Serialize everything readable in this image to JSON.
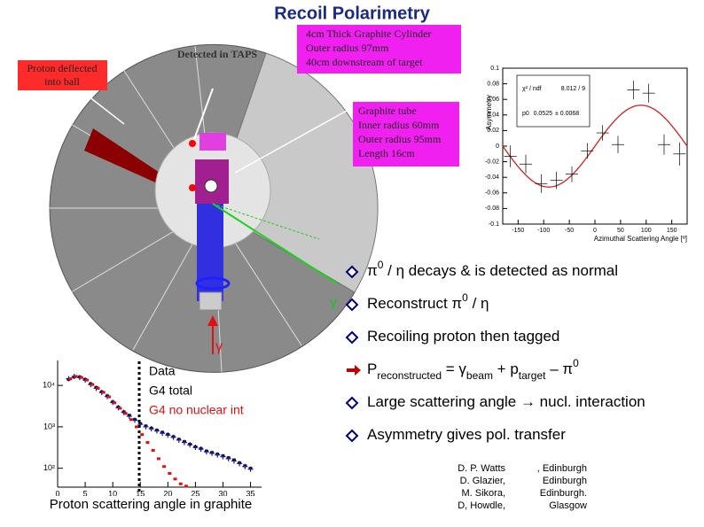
{
  "title": "Recoil Polarimetry",
  "callouts": {
    "proton_deflected": [
      "Proton deflected",
      "into ball"
    ],
    "detected": "Detected in TAPS",
    "cylinder": [
      "4cm Thick Graphite Cylinder",
      "Outer radius 97mm",
      "40cm downstream of target"
    ],
    "tube": [
      "Graphite tube",
      "Inner radius 60mm",
      "Outer radius 95mm",
      "Length 16cm"
    ],
    "gamma_out": "γ",
    "gamma_beam": "γ"
  },
  "asymmetry_plot": {
    "type": "scatter",
    "x": [
      -165,
      -135,
      -105,
      -75,
      -45,
      -15,
      15,
      45,
      75,
      105,
      135,
      165
    ],
    "values": [
      -0.013,
      -0.023,
      -0.048,
      -0.044,
      -0.036,
      -0.006,
      0.017,
      0.002,
      0.072,
      0.068,
      0.002,
      -0.01
    ],
    "errors": [
      0.014,
      0.012,
      0.012,
      0.011,
      0.01,
      0.01,
      0.01,
      0.011,
      0.012,
      0.012,
      0.013,
      0.015
    ],
    "color": "#000000",
    "fit_color": "#d42020",
    "xlim": [
      -180,
      180
    ],
    "xticks": [
      -150,
      -100,
      -50,
      0,
      50,
      100,
      150
    ],
    "ylim": [
      -0.1,
      0.1
    ],
    "yticks": [
      -0.1,
      -0.08,
      -0.06,
      -0.04,
      -0.02,
      0,
      0.02,
      0.04,
      0.06,
      0.08,
      0.1
    ],
    "xlabel": "Azimuthal Scattering Angle [º]",
    "ylabel": "Asymmetry",
    "stats": {
      "chi2_name": "χ² / ndf",
      "chi2": "8.012 / 9",
      "p0_name": "p0",
      "p0": 0.0525,
      "p0_error": "± 0.0068"
    }
  },
  "scattering_plot": {
    "type": "scatter",
    "log_y": true,
    "x": [
      2,
      3,
      4,
      5,
      6,
      7,
      8,
      9,
      10,
      11,
      12,
      13,
      14,
      15,
      16,
      17,
      18,
      19,
      20,
      21,
      22,
      23,
      24,
      25,
      26,
      27,
      28,
      29,
      30,
      31,
      32,
      33,
      34,
      35
    ],
    "series": [
      {
        "name": "Data",
        "color": "#000000",
        "label_color": "#000000",
        "values": [
          14000,
          16000,
          16000,
          14000,
          11000,
          9000,
          7000,
          5600,
          4000,
          3000,
          2300,
          1900,
          1500,
          1200,
          1050,
          930,
          830,
          740,
          660,
          580,
          500,
          440,
          380,
          330,
          300,
          260,
          240,
          220,
          200,
          180,
          160,
          135,
          115,
          100
        ]
      },
      {
        "name": "G4 total",
        "color": "#1a1aa0",
        "label_color": "#000000",
        "values": [
          14500,
          16500,
          15500,
          13500,
          10500,
          8500,
          6800,
          5400,
          3900,
          2900,
          2250,
          1800,
          1450,
          1150,
          1000,
          900,
          800,
          700,
          630,
          560,
          480,
          420,
          370,
          320,
          290,
          250,
          230,
          210,
          190,
          170,
          150,
          130,
          110,
          95
        ]
      },
      {
        "name": "G4 no nuclear int",
        "color": "#e01010",
        "label_color": "#e01010",
        "values": [
          14500,
          16500,
          15500,
          13500,
          10500,
          8500,
          6800,
          5300,
          3800,
          2800,
          2100,
          1500,
          1000,
          650,
          420,
          270,
          170,
          110,
          75,
          55,
          42,
          37,
          null,
          null,
          null,
          null,
          null,
          null,
          null,
          null,
          null,
          null,
          null,
          null
        ]
      }
    ],
    "xlim": [
      0,
      37
    ],
    "xticks": [
      0,
      5,
      10,
      15,
      20,
      25,
      30,
      35
    ],
    "ylim": [
      35,
      40000
    ],
    "yticks": [
      {
        "value": 10000,
        "label": "10⁴"
      },
      {
        "value": 1000,
        "label": "10³"
      },
      {
        "value": 100,
        "label": "10²"
      }
    ],
    "xlabel": "Proton scattering angle in graphite"
  },
  "bullets": [
    [
      {
        "text": "π"
      },
      {
        "text": "0",
        "style": "sup"
      },
      {
        "text": " / η decays & is detected as normal"
      }
    ],
    [
      {
        "text": "Reconstruct π"
      },
      {
        "text": "0",
        "style": "sup"
      },
      {
        "text": " / η"
      }
    ],
    [
      {
        "text": "Recoiling proton then tagged"
      }
    ],
    [
      {
        "text": "P"
      },
      {
        "text": "reconstructed",
        "style": "sub"
      },
      {
        "text": " = γ"
      },
      {
        "text": "beam",
        "style": "sub"
      },
      {
        "text": " + p"
      },
      {
        "text": "target",
        "style": "sub"
      },
      {
        "text": " – π"
      },
      {
        "text": "0",
        "style": "sup"
      }
    ],
    [
      {
        "text": "Large scattering angle → nucl. interaction"
      }
    ],
    [
      {
        "text": "Asymmetry gives pol. transfer"
      }
    ]
  ],
  "authors": [
    [
      "D. P. Watts",
      ", Edinburgh"
    ],
    [
      "D. Glazier,",
      "Edinburgh"
    ],
    [
      "M. Sikora,",
      "Edinburgh."
    ],
    [
      "D, Howdle,",
      "Glasgow"
    ]
  ]
}
